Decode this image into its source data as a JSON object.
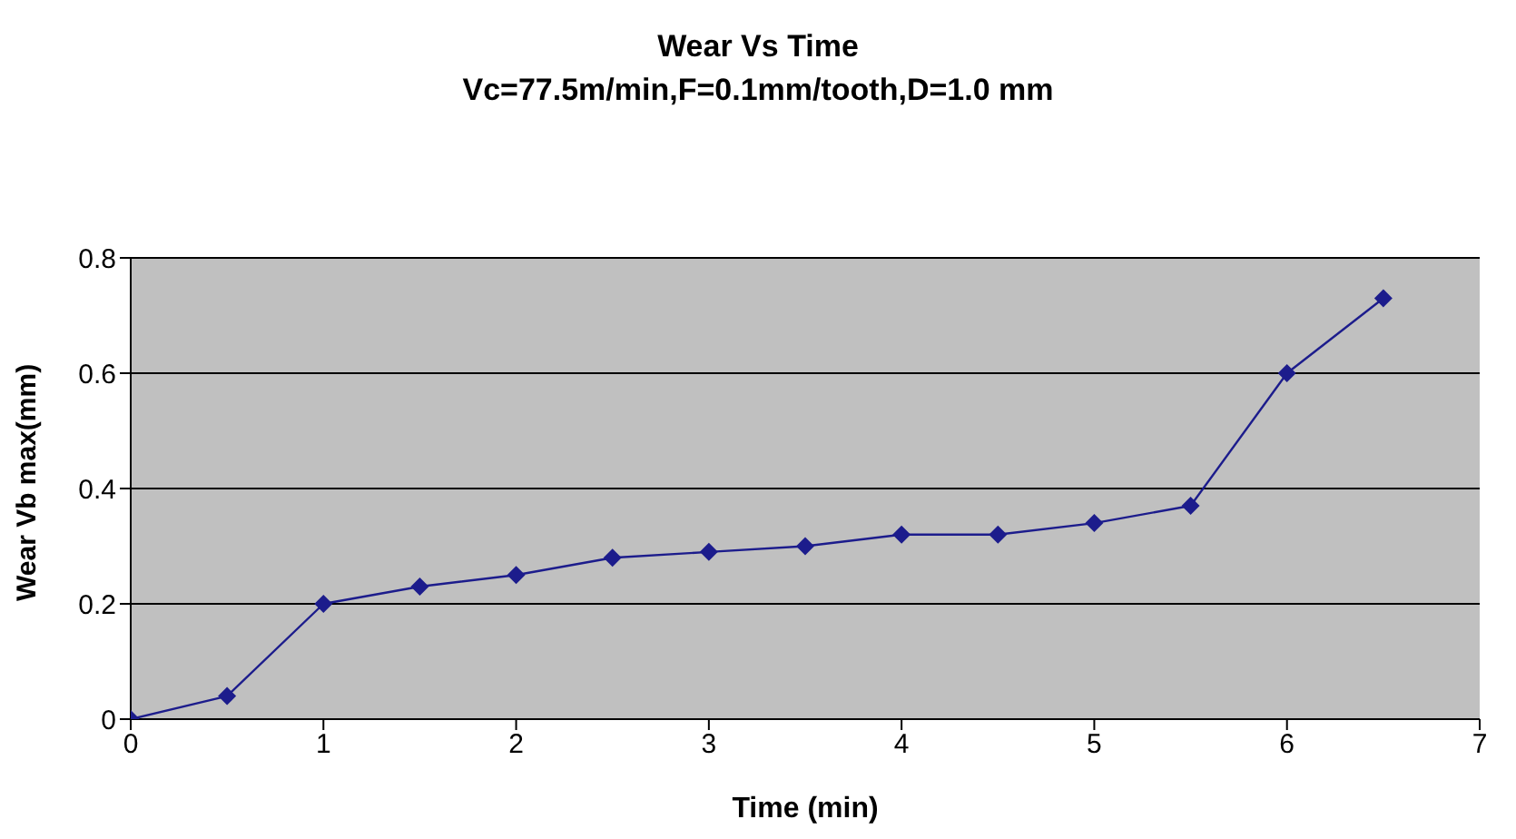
{
  "chart_data": {
    "type": "line",
    "title": "Wear Vs Time",
    "subtitle": "Vc=77.5m/min,F=0.1mm/tooth,D=1.0 mm",
    "xlabel": "Time (min)",
    "ylabel": "Wear Vb max(mm)",
    "x": [
      0,
      0.5,
      1,
      1.5,
      2,
      2.5,
      3,
      3.5,
      4,
      4.5,
      5,
      5.5,
      6,
      6.5
    ],
    "series": [
      {
        "color": "#1c1c8c",
        "values": [
          0,
          0.04,
          0.2,
          0.23,
          0.25,
          0.28,
          0.29,
          0.3,
          0.32,
          0.32,
          0.34,
          0.37,
          0.6,
          0.73
        ]
      }
    ],
    "xlim": [
      0,
      7
    ],
    "xticks": [
      0,
      1,
      2,
      3,
      4,
      5,
      6,
      7
    ],
    "ylim": [
      0,
      0.8
    ],
    "yticks": [
      0,
      0.2,
      0.4,
      0.6,
      0.8
    ],
    "grid": "y",
    "marker": "diamond",
    "line_style": "solid"
  }
}
